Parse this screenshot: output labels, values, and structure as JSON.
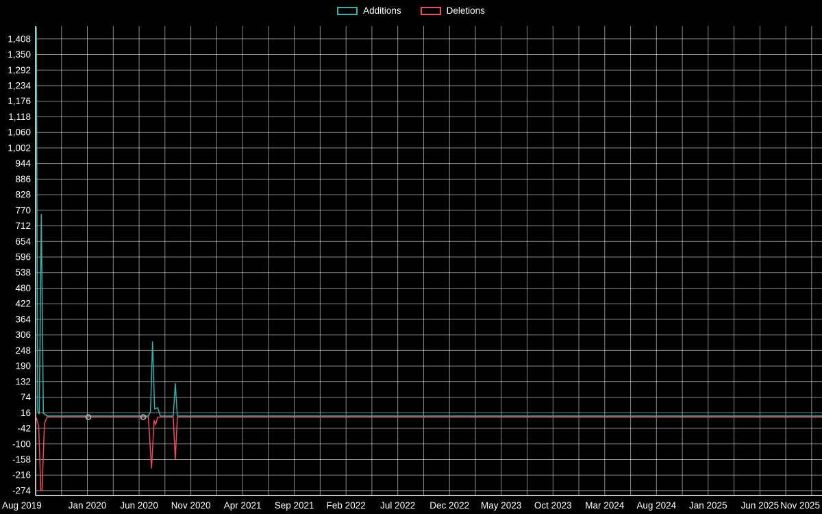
{
  "legend": {
    "items": [
      {
        "label": "Additions",
        "color": "#2fb3ab"
      },
      {
        "label": "Deletions",
        "color": "#f1495c"
      }
    ]
  },
  "chart_data": {
    "type": "line",
    "title": "",
    "background": "#000000",
    "grid": "on",
    "legend_position": "top-center",
    "x_axis": {
      "unit": "months since Aug 2019",
      "labels": [
        "Aug 2019",
        "Jan 2020",
        "Jun 2020",
        "Nov 2020",
        "Apr 2021",
        "Sep 2021",
        "Feb 2022",
        "Jul 2022",
        "Dec 2022",
        "May 2023",
        "Oct 2023",
        "Mar 2024",
        "Aug 2024",
        "Jan 2025",
        "Jun 2025",
        "Nov 2025"
      ],
      "label_step_months": 5
    },
    "y_axis": {
      "tick_values": [
        1408,
        1350,
        1292,
        1234,
        1176,
        1118,
        1060,
        1002,
        944,
        886,
        828,
        770,
        712,
        654,
        596,
        538,
        480,
        422,
        364,
        306,
        248,
        190,
        132,
        74,
        16,
        -42,
        -100,
        -158,
        -216,
        -274
      ],
      "tick_labels": [
        "1,408",
        "1,350",
        "1,292",
        "1,234",
        "1,176",
        "1,118",
        "1,060",
        "1,002",
        "944",
        "886",
        "828",
        "770",
        "712",
        "654",
        "596",
        "538",
        "480",
        "422",
        "364",
        "306",
        "248",
        "190",
        "132",
        "74",
        "16",
        "-42",
        "-100",
        "-158",
        "-216",
        "-274"
      ],
      "tick_step": 58
    },
    "x_domain_months": [
      0,
      76
    ],
    "y_domain": [
      -292,
      1456
    ],
    "series": [
      {
        "name": "Additions",
        "color": "#2fb3ab",
        "points": [
          [
            0.07,
            1450
          ],
          [
            0.2,
            25
          ],
          [
            0.35,
            12
          ],
          [
            0.55,
            755
          ],
          [
            0.75,
            15
          ],
          [
            1.1,
            4
          ],
          [
            10.9,
            4
          ],
          [
            11.1,
            20
          ],
          [
            11.3,
            280
          ],
          [
            11.5,
            30
          ],
          [
            11.8,
            35
          ],
          [
            12.05,
            4
          ],
          [
            13.3,
            4
          ],
          [
            13.5,
            125
          ],
          [
            13.7,
            4
          ],
          [
            76,
            4
          ]
        ]
      },
      {
        "name": "Deletions",
        "color": "#f1495c",
        "points": [
          [
            0.07,
            -3
          ],
          [
            0.3,
            -35
          ],
          [
            0.5,
            -274
          ],
          [
            0.62,
            -274
          ],
          [
            0.85,
            -25
          ],
          [
            1.1,
            0
          ],
          [
            10.9,
            0
          ],
          [
            11.2,
            -190
          ],
          [
            11.45,
            -12
          ],
          [
            11.6,
            -28
          ],
          [
            11.8,
            0
          ],
          [
            13.3,
            0
          ],
          [
            13.5,
            -158
          ],
          [
            13.7,
            0
          ],
          [
            76,
            0
          ]
        ]
      }
    ],
    "markers": [
      {
        "month": 5.1,
        "value": 0
      },
      {
        "month": 10.4,
        "value": 0
      }
    ],
    "peak_events": [
      {
        "date": "Aug 2019",
        "additions": 1450,
        "deletions": -274
      },
      {
        "date": "Sep 2019",
        "additions": 755,
        "deletions": 0
      },
      {
        "date": "Jul 2020",
        "additions": 280,
        "deletions": -190
      },
      {
        "date": "Oct 2020",
        "additions": 125,
        "deletions": -158
      }
    ]
  }
}
